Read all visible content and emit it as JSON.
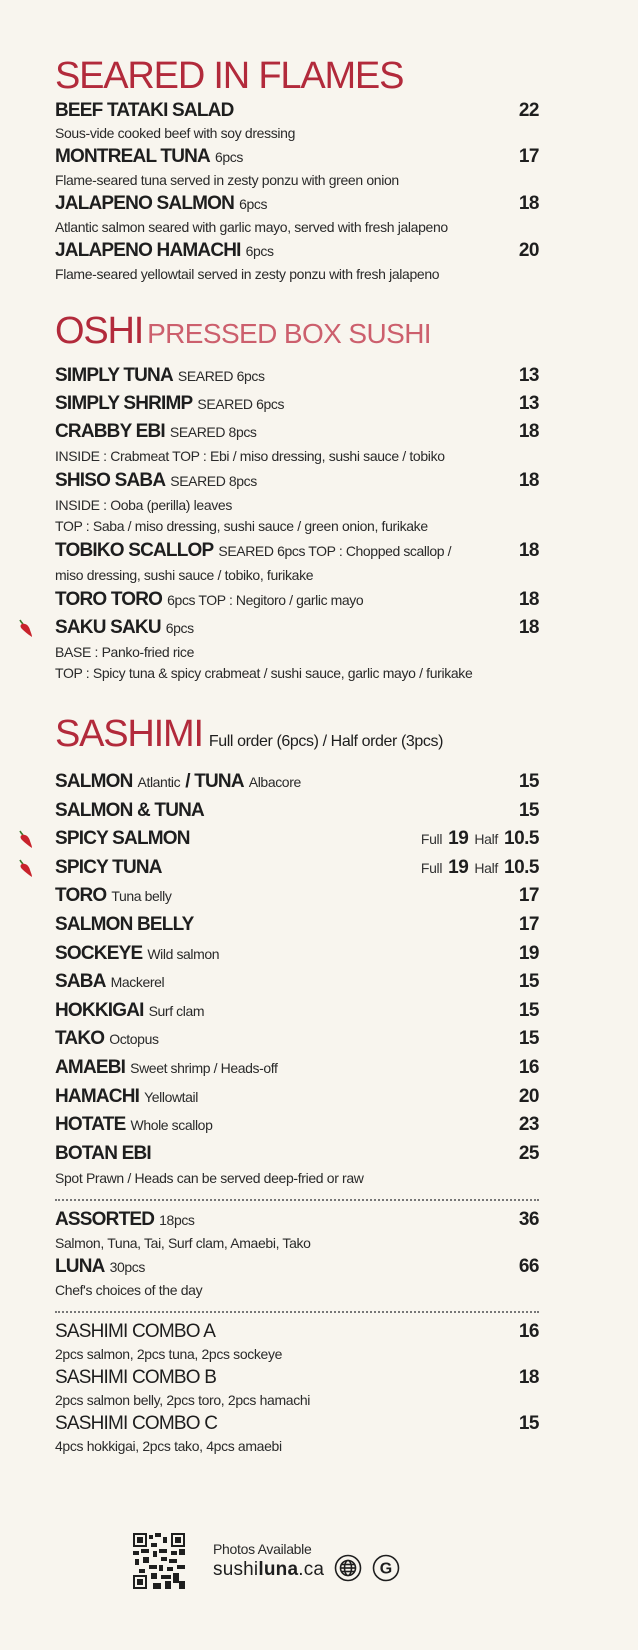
{
  "sections": [
    {
      "id": "seared",
      "title": "SEARED IN FLAMES",
      "items": [
        {
          "name": "BEEF TATAKI SALAD",
          "price": "22",
          "desc": [
            "Sous-vide cooked beef with soy dressing"
          ]
        },
        {
          "name": "MONTREAL TUNA",
          "sub": "6pcs",
          "price": "17",
          "desc": [
            "Flame-seared tuna served in zesty ponzu with green onion"
          ]
        },
        {
          "name": "JALAPENO SALMON",
          "sub": "6pcs",
          "price": "18",
          "desc": [
            "Atlantic salmon seared with garlic mayo, served with fresh jalapeno"
          ]
        },
        {
          "name": "JALAPENO HAMACHI",
          "sub": "6pcs",
          "price": "20",
          "desc": [
            "Flame-seared yellowtail served in zesty ponzu with fresh jalapeno"
          ]
        }
      ]
    },
    {
      "id": "oshi",
      "title": "OSHI",
      "subtitle": "PRESSED BOX SUSHI",
      "items": [
        {
          "name": "SIMPLY TUNA",
          "sub": "SEARED 6pcs",
          "price": "13"
        },
        {
          "name": "SIMPLY SHRIMP",
          "sub": "SEARED 6pcs",
          "price": "13"
        },
        {
          "name": "CRABBY EBI",
          "sub": "SEARED 8pcs",
          "price": "18",
          "desc": [
            "INSIDE : Crabmeat TOP : Ebi / miso dressing, sushi sauce / tobiko"
          ]
        },
        {
          "name": "SHISO SABA",
          "sub": "SEARED 8pcs",
          "price": "18",
          "desc": [
            "INSIDE : Ooba (perilla) leaves",
            "TOP : Saba / miso dressing, sushi sauce / green onion, furikake"
          ]
        },
        {
          "name": "TOBIKO SCALLOP",
          "sub": "SEARED 6pcs  TOP : Chopped scallop /",
          "price": "18",
          "desc": [
            "miso dressing, sushi sauce / tobiko, furikake"
          ]
        },
        {
          "name": "TORO TORO",
          "sub": "6pcs  TOP : Negitoro / garlic mayo",
          "price": "18"
        },
        {
          "name": "SAKU SAKU",
          "sub": "6pcs",
          "price": "18",
          "spicy": true,
          "desc": [
            "BASE : Panko-fried rice",
            "TOP : Spicy tuna & spicy crabmeat / sushi sauce, garlic mayo / furikake"
          ]
        }
      ]
    },
    {
      "id": "sashimi",
      "title": "SASHIMI",
      "note": "Full order (6pcs) / Half order (3pcs)",
      "items": [
        {
          "name": "SALMON",
          "sub": "Atlantic",
          "name2": "/ TUNA",
          "sub2": "Albacore",
          "price": "15"
        },
        {
          "name": "SALMON & TUNA",
          "price": "15"
        },
        {
          "name": "SPICY SALMON",
          "spicy": true,
          "full_label": "Full",
          "full": "19",
          "half_label": "Half",
          "half": "10.5"
        },
        {
          "name": "SPICY TUNA",
          "spicy": true,
          "full_label": "Full",
          "full": "19",
          "half_label": "Half",
          "half": "10.5"
        },
        {
          "name": "TORO",
          "sub": "Tuna belly",
          "price": "17"
        },
        {
          "name": "SALMON BELLY",
          "price": "17"
        },
        {
          "name": "SOCKEYE",
          "sub": "Wild salmon",
          "price": "19"
        },
        {
          "name": "SABA",
          "sub": "Mackerel",
          "price": "15"
        },
        {
          "name": "HOKKIGAI",
          "sub": "Surf clam",
          "price": "15"
        },
        {
          "name": "TAKO",
          "sub": "Octopus",
          "price": "15"
        },
        {
          "name": "AMAEBI",
          "sub": "Sweet shrimp / Heads-off",
          "price": "16"
        },
        {
          "name": "HAMACHI",
          "sub": "Yellowtail",
          "price": "20"
        },
        {
          "name": "HOTATE",
          "sub": "Whole scallop",
          "price": "23"
        },
        {
          "name": "BOTAN EBI",
          "price": "25",
          "desc": [
            "Spot Prawn / Heads can be served deep-fried or raw"
          ]
        },
        {
          "divider": true
        },
        {
          "name": "ASSORTED",
          "sub": "18pcs",
          "price": "36",
          "combo": true,
          "desc": [
            "Salmon, Tuna, Tai, Surf clam, Amaebi, Tako"
          ]
        },
        {
          "name": "LUNA",
          "sub": "30pcs",
          "price": "66",
          "combo": true,
          "desc": [
            "Chef's choices of the day"
          ]
        },
        {
          "divider": true
        },
        {
          "name": "SASHIMI COMBO A",
          "price": "16",
          "combo": true,
          "light": true,
          "desc": [
            "2pcs salmon, 2pcs tuna, 2pcs sockeye"
          ]
        },
        {
          "name": "SASHIMI COMBO B",
          "price": "18",
          "combo": true,
          "light": true,
          "desc": [
            "2pcs salmon belly, 2pcs toro, 2pcs hamachi"
          ]
        },
        {
          "name": "SASHIMI COMBO C",
          "price": "15",
          "combo": true,
          "light": true,
          "desc": [
            "4pcs hokkigai, 2pcs tako, 4pcs amaebi"
          ]
        }
      ]
    }
  ],
  "footer": {
    "photos_label": "Photos Available",
    "site_prefix": "sushi",
    "site_bold": "luna",
    "site_suffix": ".ca",
    "icons": [
      "qr-code-icon",
      "globe-icon",
      "google-icon"
    ]
  },
  "colors": {
    "accent": "#b22a3b",
    "accent_light": "#cc5f6d",
    "background": "#f8f5ee",
    "text": "#1e1e1e"
  }
}
